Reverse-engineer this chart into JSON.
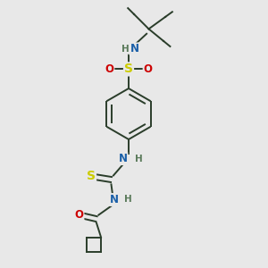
{
  "bg_color": "#e8e8e8",
  "bond_color": "#2a3d2a",
  "bond_width": 1.4,
  "atom_colors": {
    "N": "#1a5fa8",
    "O": "#cc0000",
    "S": "#cccc00",
    "H": "#5a7a5a",
    "C": "#2a3d2a"
  },
  "font_size": 8.5,
  "fig_size": [
    3.0,
    3.0
  ],
  "dpi": 100
}
